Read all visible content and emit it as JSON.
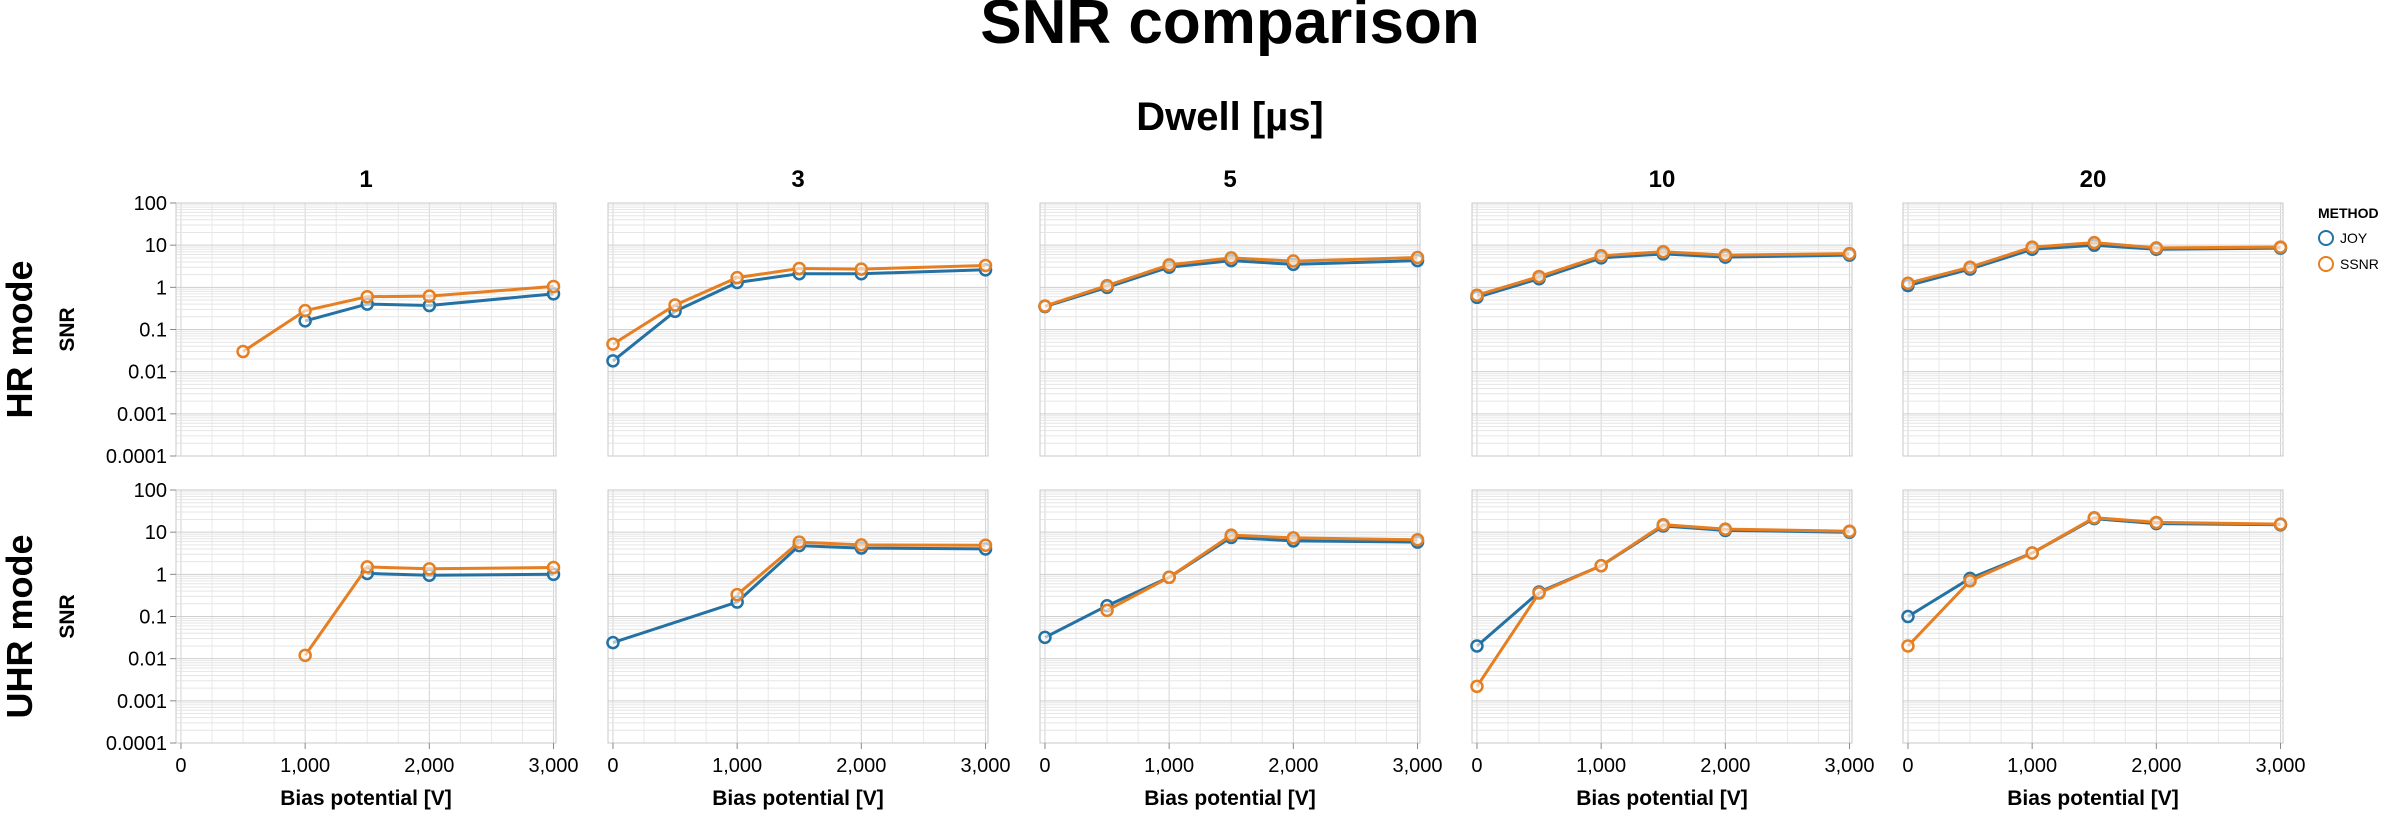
{
  "chart_data": {
    "type": "line",
    "title": "SNR comparison",
    "column_header": "Dwell [µs]",
    "columns": [
      "1",
      "3",
      "5",
      "10",
      "20"
    ],
    "rows": [
      "HR mode",
      "UHR mode"
    ],
    "xlabel": "Bias potential [V]",
    "ylabel": "SNR",
    "x_ticks": [
      "0",
      "1,000",
      "2,000",
      "3,000"
    ],
    "x_tick_values": [
      0,
      1000,
      2000,
      3000
    ],
    "xlim": [
      0,
      3000
    ],
    "y_scale": "log",
    "ylim": [
      0.0001,
      100
    ],
    "y_ticks": [
      "0.0001",
      "0.001",
      "0.01",
      "0.1",
      "1",
      "10",
      "100"
    ],
    "y_tick_values": [
      0.0001,
      0.001,
      0.01,
      0.1,
      1,
      10,
      100
    ],
    "grid": true,
    "legend": {
      "title": "METHOD",
      "placement": "right",
      "entries": [
        {
          "name": "JOY",
          "color": "#2471a3"
        },
        {
          "name": "SSNR",
          "color": "#e67e22"
        }
      ]
    },
    "panels": [
      {
        "row": "HR mode",
        "column": "1",
        "series": [
          {
            "name": "JOY",
            "x": [
              1000,
              1500,
              2000,
              3000
            ],
            "y": [
              0.16,
              0.4,
              0.37,
              0.7
            ]
          },
          {
            "name": "SSNR",
            "x": [
              500,
              1000,
              1500,
              2000,
              3000
            ],
            "y": [
              0.03,
              0.28,
              0.6,
              0.62,
              1.05
            ]
          }
        ]
      },
      {
        "row": "HR mode",
        "column": "3",
        "series": [
          {
            "name": "JOY",
            "x": [
              0,
              500,
              1000,
              1500,
              2000,
              3000
            ],
            "y": [
              0.018,
              0.27,
              1.3,
              2.1,
              2.1,
              2.6
            ]
          },
          {
            "name": "SSNR",
            "x": [
              0,
              500,
              1000,
              1500,
              2000,
              3000
            ],
            "y": [
              0.045,
              0.38,
              1.7,
              2.8,
              2.7,
              3.3
            ]
          }
        ]
      },
      {
        "row": "HR mode",
        "column": "5",
        "series": [
          {
            "name": "JOY",
            "x": [
              0,
              500,
              1000,
              1500,
              2000,
              3000
            ],
            "y": [
              0.35,
              1.0,
              3.0,
              4.3,
              3.5,
              4.3
            ]
          },
          {
            "name": "SSNR",
            "x": [
              0,
              500,
              1000,
              1500,
              2000,
              3000
            ],
            "y": [
              0.36,
              1.1,
              3.4,
              5.0,
              4.2,
              5.1
            ]
          }
        ]
      },
      {
        "row": "HR mode",
        "column": "10",
        "series": [
          {
            "name": "JOY",
            "x": [
              0,
              500,
              1000,
              1500,
              2000,
              3000
            ],
            "y": [
              0.58,
              1.6,
              5.0,
              6.2,
              5.2,
              5.8
            ]
          },
          {
            "name": "SSNR",
            "x": [
              0,
              500,
              1000,
              1500,
              2000,
              3000
            ],
            "y": [
              0.65,
              1.8,
              5.6,
              7.0,
              5.8,
              6.3
            ]
          }
        ]
      },
      {
        "row": "HR mode",
        "column": "20",
        "series": [
          {
            "name": "JOY",
            "x": [
              0,
              500,
              1000,
              1500,
              2000,
              3000
            ],
            "y": [
              1.1,
              2.7,
              8.0,
              10.0,
              8.0,
              8.5
            ]
          },
          {
            "name": "SSNR",
            "x": [
              0,
              500,
              1000,
              1500,
              2000,
              3000
            ],
            "y": [
              1.25,
              3.0,
              9.0,
              11.5,
              8.6,
              9.0
            ]
          }
        ]
      },
      {
        "row": "UHR mode",
        "column": "1",
        "series": [
          {
            "name": "JOY",
            "x": [
              1500,
              2000,
              3000
            ],
            "y": [
              1.05,
              0.95,
              1.0
            ]
          },
          {
            "name": "SSNR",
            "x": [
              1000,
              1500,
              2000,
              3000
            ],
            "y": [
              0.012,
              1.5,
              1.35,
              1.45
            ]
          }
        ]
      },
      {
        "row": "UHR mode",
        "column": "3",
        "series": [
          {
            "name": "JOY",
            "x": [
              0,
              1000,
              1500,
              2000,
              3000
            ],
            "y": [
              0.024,
              0.22,
              4.8,
              4.2,
              4.0
            ]
          },
          {
            "name": "SSNR",
            "x": [
              1000,
              1500,
              2000,
              3000
            ],
            "y": [
              0.33,
              5.8,
              5.0,
              4.9
            ]
          }
        ]
      },
      {
        "row": "UHR mode",
        "column": "5",
        "series": [
          {
            "name": "JOY",
            "x": [
              0,
              500,
              1000,
              1500,
              2000,
              3000
            ],
            "y": [
              0.032,
              0.18,
              0.85,
              7.5,
              6.2,
              5.8
            ]
          },
          {
            "name": "SSNR",
            "x": [
              500,
              1000,
              1500,
              2000,
              3000
            ],
            "y": [
              0.14,
              0.85,
              8.5,
              7.3,
              6.6
            ]
          }
        ]
      },
      {
        "row": "UHR mode",
        "column": "10",
        "series": [
          {
            "name": "JOY",
            "x": [
              0,
              500,
              1000,
              1500,
              2000,
              3000
            ],
            "y": [
              0.02,
              0.38,
              1.6,
              14.0,
              11.0,
              10.0
            ]
          },
          {
            "name": "SSNR",
            "x": [
              0,
              500,
              1000,
              1500,
              2000,
              3000
            ],
            "y": [
              0.0022,
              0.36,
              1.6,
              15.0,
              11.8,
              10.5
            ]
          }
        ]
      },
      {
        "row": "UHR mode",
        "column": "20",
        "series": [
          {
            "name": "JOY",
            "x": [
              0,
              500,
              1000,
              1500,
              2000,
              3000
            ],
            "y": [
              0.1,
              0.8,
              3.2,
              21.0,
              16.0,
              15.0
            ]
          },
          {
            "name": "SSNR",
            "x": [
              0,
              500,
              1000,
              1500,
              2000,
              3000
            ],
            "y": [
              0.02,
              0.7,
              3.2,
              22.0,
              17.0,
              15.5
            ]
          }
        ]
      }
    ]
  }
}
